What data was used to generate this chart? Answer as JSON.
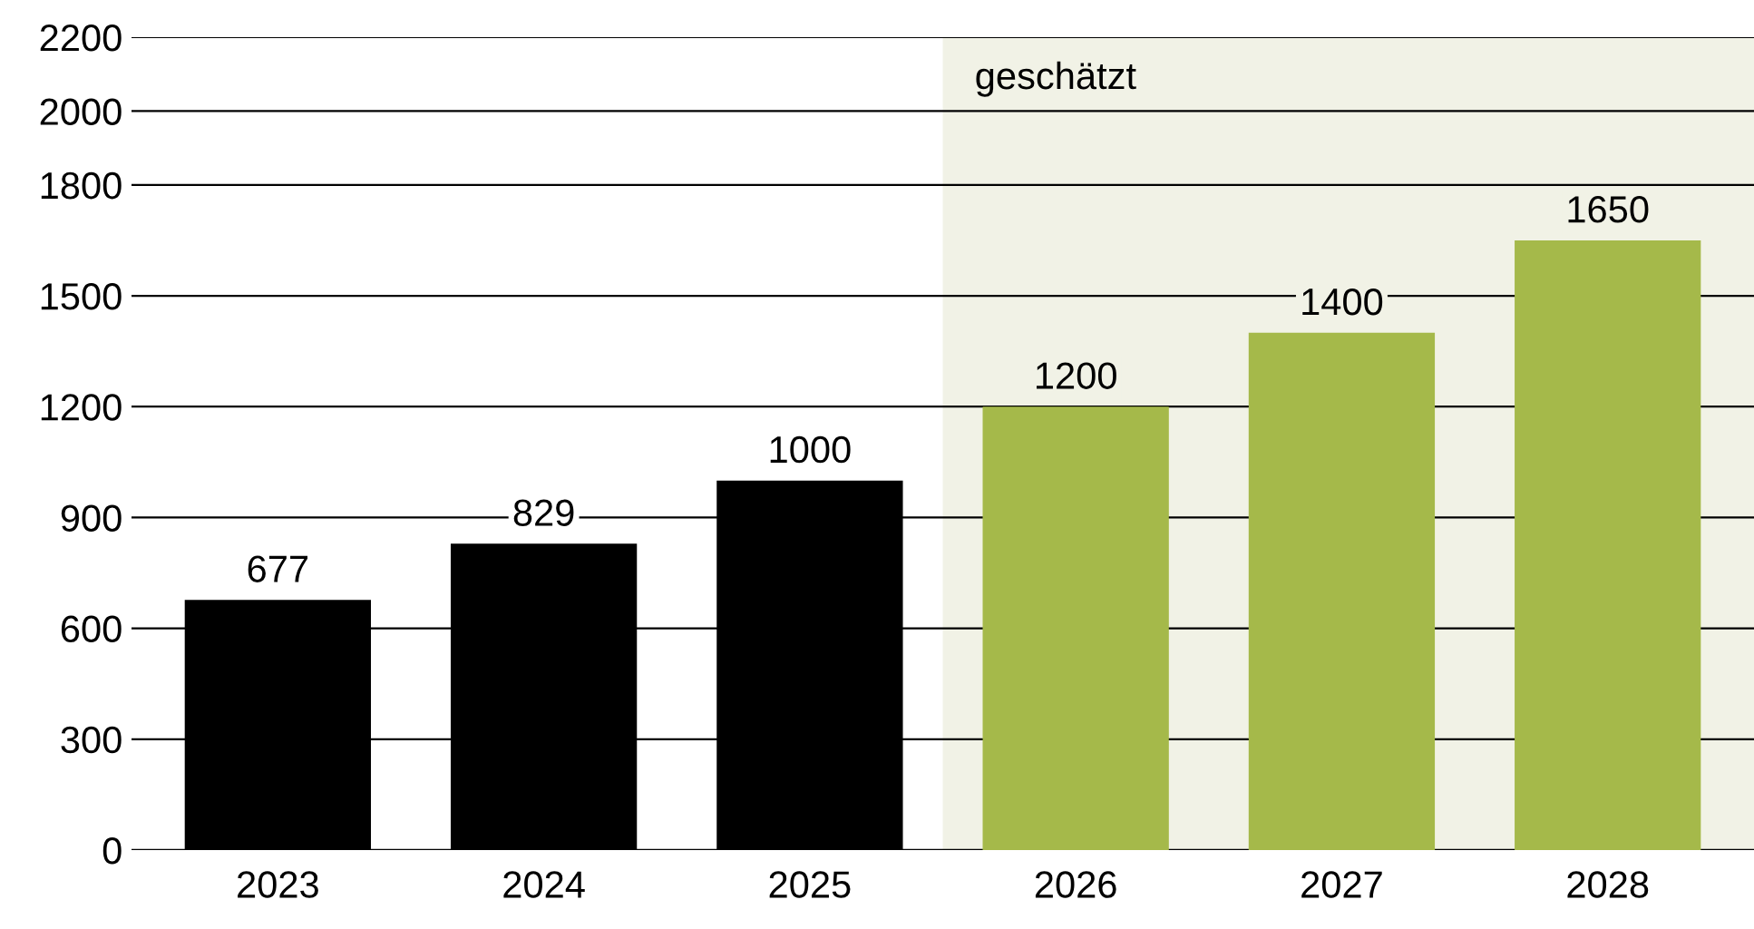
{
  "chart_data": {
    "type": "bar",
    "categories": [
      "2023",
      "2024",
      "2025",
      "2026",
      "2027",
      "2028"
    ],
    "values": [
      677,
      829,
      1000,
      1200,
      1400,
      1650
    ],
    "colors": [
      "#000000",
      "#000000",
      "#000000",
      "#a5b94a",
      "#a5b94a",
      "#a5b94a"
    ],
    "data_labels": true,
    "ylim": [
      0,
      2200
    ],
    "yticks": [
      0,
      300,
      600,
      900,
      1200,
      1500,
      1800,
      2000,
      2200
    ],
    "grid": "y",
    "bands": [
      {
        "axis": "x",
        "from": "2026",
        "to": "2028",
        "label": "geschätzt",
        "color": "#f1f2e6"
      }
    ]
  }
}
